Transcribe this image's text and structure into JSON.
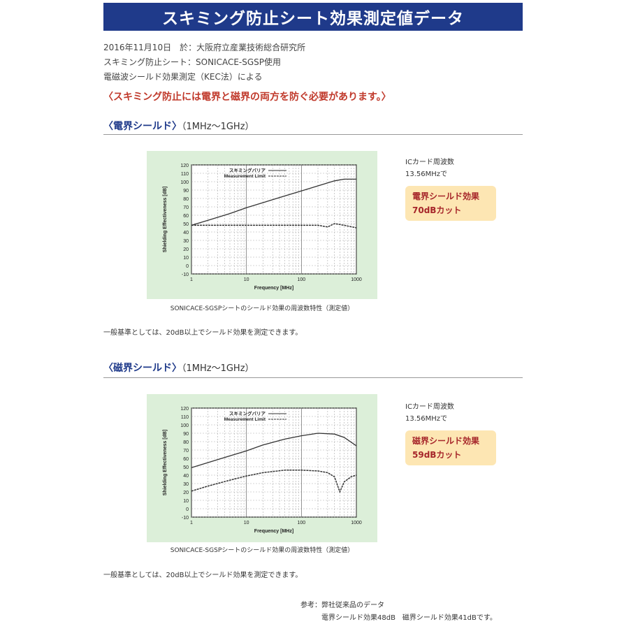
{
  "header": {
    "title": "スキミング防止シート効果測定値データ"
  },
  "info": {
    "line1": "2016年11月10日　於：大阪府立産業技術総合研究所",
    "line2": "スキミング防止シート：SONICACE-SGSP使用",
    "line3": "電磁波シールド効果測定（KEC法）による"
  },
  "lead": "〈スキミング防止には電界と磁界の両方を防ぐ必要があります。〉",
  "sections": [
    {
      "title": "〈電界シールド〉",
      "range": "（1MHz〜1GHz）",
      "ic_line1": "ICカード周波数",
      "ic_line2": "13.56MHzで",
      "badge_line1": "電界シールド効果",
      "badge_line2": "70dBカット",
      "caption": "SONICACE-SGSPシートのシールド効果の周波数特性（測定値）",
      "note": "一般基準としては、20dB以上でシールド効果を測定できます。"
    },
    {
      "title": "〈磁界シールド〉",
      "range": "（1MHz〜1GHz）",
      "ic_line1": "ICカード周波数",
      "ic_line2": "13.56MHzで",
      "badge_line1": "磁界シールド効果",
      "badge_line2": "59dBカット",
      "caption": "SONICACE-SGSPシートのシールド効果の周波数特性（測定値）",
      "note": "一般基準としては、20dB以上でシールド効果を測定できます。"
    }
  ],
  "reference": {
    "line1": "参考：弊社従来品のデータ",
    "line2": "電界シールド効果48dB　磁界シールド効果41dBです。"
  },
  "chart_data": [
    {
      "type": "line",
      "xscale": "log",
      "xlabel": "Frequency [MHz]",
      "ylabel": "Shielding Effectiveness [dB]",
      "xlim": [
        1,
        1000
      ],
      "ylim": [
        -10,
        120
      ],
      "xticks": [
        "1",
        "10",
        "100",
        "1000"
      ],
      "yticks": [
        120,
        110,
        100,
        90,
        80,
        70,
        60,
        50,
        40,
        30,
        20,
        10,
        0,
        -10
      ],
      "legend_position": "top",
      "series": [
        {
          "name": "スキミングバリア",
          "x": [
            1,
            2,
            5,
            10,
            20,
            50,
            100,
            200,
            400,
            600,
            1000
          ],
          "y": [
            48,
            54,
            62,
            69,
            75,
            83,
            89,
            95,
            101,
            103,
            103
          ]
        },
        {
          "name": "Measurement Limit",
          "x": [
            1,
            2,
            5,
            10,
            20,
            50,
            100,
            200,
            300,
            400,
            600,
            1000
          ],
          "y": [
            48,
            48,
            48,
            48,
            48,
            48,
            48,
            48,
            46,
            50,
            48,
            45
          ]
        }
      ]
    },
    {
      "type": "line",
      "xscale": "log",
      "xlabel": "Frequency [MHz]",
      "ylabel": "Shielding Effectiveness [dB]",
      "xlim": [
        1,
        1000
      ],
      "ylim": [
        -10,
        120
      ],
      "xticks": [
        "1",
        "10",
        "100",
        "1000"
      ],
      "yticks": [
        120,
        110,
        100,
        90,
        80,
        70,
        60,
        50,
        40,
        30,
        20,
        10,
        0,
        -10
      ],
      "legend_position": "top",
      "series": [
        {
          "name": "スキミングバリア",
          "x": [
            1,
            2,
            5,
            10,
            20,
            50,
            100,
            200,
            400,
            600,
            1000
          ],
          "y": [
            49,
            55,
            63,
            69,
            76,
            83,
            87,
            90,
            89,
            85,
            75
          ]
        },
        {
          "name": "Measurement Limit",
          "x": [
            1,
            2,
            5,
            10,
            20,
            50,
            100,
            200,
            300,
            400,
            500,
            600,
            800,
            1000
          ],
          "y": [
            21,
            27,
            34,
            39,
            43,
            46,
            46,
            45,
            43,
            38,
            20,
            32,
            38,
            40
          ]
        }
      ]
    }
  ]
}
